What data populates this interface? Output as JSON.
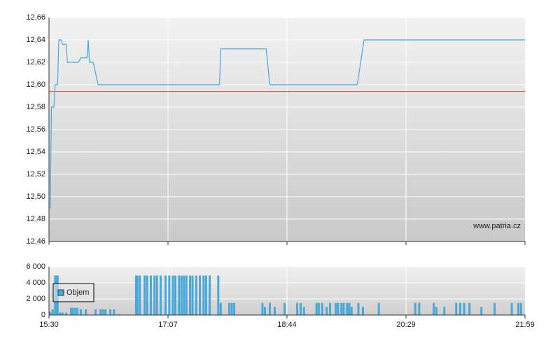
{
  "chart_data": [
    {
      "type": "line",
      "color": "#4aa8d8",
      "x": [
        "15:30",
        "15:31",
        "15:32",
        "15:34",
        "15:35",
        "15:37",
        "15:38",
        "15:40",
        "15:41",
        "15:44",
        "15:45",
        "15:54",
        "15:56",
        "16:01",
        "16:02",
        "16:03",
        "16:06",
        "16:10",
        "17:49",
        "17:50",
        "18:27",
        "18:30",
        "19:46",
        "19:52",
        "21:59"
      ],
      "values": [
        12.49,
        12.49,
        12.58,
        12.58,
        12.6,
        12.6,
        12.64,
        12.64,
        12.636,
        12.636,
        12.62,
        12.62,
        12.624,
        12.624,
        12.64,
        12.62,
        12.62,
        12.6,
        12.6,
        12.632,
        12.632,
        12.6,
        12.6,
        12.64,
        12.64
      ],
      "reference": {
        "value": 12.594,
        "color": "#d9413a"
      },
      "watermark": "www.patria.cz",
      "ylim": [
        12.46,
        12.66
      ],
      "yticks": [
        {
          "value": 12.46,
          "label": "12,46"
        },
        {
          "value": 12.48,
          "label": "12,48"
        },
        {
          "value": 12.5,
          "label": "12,50"
        },
        {
          "value": 12.52,
          "label": "12,52"
        },
        {
          "value": 12.54,
          "label": "12,54"
        },
        {
          "value": 12.56,
          "label": "12,56"
        },
        {
          "value": 12.58,
          "label": "12,58"
        },
        {
          "value": 12.6,
          "label": "12,60"
        },
        {
          "value": 12.62,
          "label": "12,62"
        },
        {
          "value": 12.64,
          "label": "12,64"
        },
        {
          "value": 12.66,
          "label": "12,66"
        }
      ],
      "grid": true
    },
    {
      "type": "bar",
      "legend": "upper-left",
      "x": [
        "15:31",
        "15:33",
        "15:35",
        "15:36",
        "15:37",
        "15:39",
        "15:41",
        "15:44",
        "15:48",
        "15:49",
        "15:51",
        "15:53",
        "15:56",
        "16:00",
        "16:08",
        "16:12",
        "16:14",
        "16:16",
        "16:20",
        "16:23",
        "16:27",
        "16:41",
        "16:42",
        "16:44",
        "16:48",
        "16:50",
        "16:53",
        "16:56",
        "16:58",
        "17:01",
        "17:05",
        "17:08",
        "17:11",
        "17:13",
        "17:16",
        "17:18",
        "17:20",
        "17:22",
        "17:25",
        "17:27",
        "17:30",
        "17:33",
        "17:36",
        "17:38",
        "17:41",
        "17:48",
        "17:50",
        "17:57",
        "17:59",
        "18:01",
        "18:24",
        "18:26",
        "18:30",
        "18:34",
        "18:42",
        "18:53",
        "18:56",
        "18:59",
        "19:10",
        "19:12",
        "19:15",
        "19:19",
        "19:22",
        "19:27",
        "19:29",
        "19:32",
        "19:34",
        "19:37",
        "19:39",
        "19:41",
        "19:47",
        "19:51",
        "20:05",
        "20:36",
        "20:39",
        "20:50",
        "20:52",
        "20:58",
        "21:07",
        "21:10",
        "21:13",
        "21:17",
        "21:26",
        "21:36",
        "21:49",
        "21:54",
        "21:56"
      ],
      "series": [
        {
          "name": "Objem",
          "color": "#4aa8d8",
          "values": [
            400,
            700,
            4900,
            4900,
            4900,
            300,
            300,
            300,
            900,
            900,
            900,
            900,
            700,
            700,
            700,
            700,
            700,
            700,
            700,
            700,
            100,
            4900,
            4900,
            4900,
            4900,
            4900,
            4900,
            4900,
            4900,
            4900,
            4900,
            4900,
            4900,
            4900,
            4900,
            4900,
            4900,
            4900,
            4900,
            4900,
            4900,
            4900,
            4900,
            4900,
            4900,
            4900,
            1500,
            1500,
            1500,
            1500,
            1500,
            1000,
            1500,
            1000,
            1500,
            1500,
            1500,
            1000,
            1500,
            1500,
            1500,
            1000,
            1500,
            1500,
            1500,
            1500,
            1500,
            1500,
            1500,
            1000,
            1500,
            1000,
            1500,
            1500,
            1500,
            1500,
            1000,
            1000,
            1500,
            1500,
            1500,
            1500,
            1000,
            1500,
            1500,
            1500,
            1500
          ]
        }
      ],
      "ylim": [
        0,
        6000
      ],
      "yticks": [
        0,
        {
          "value": 2000,
          "label": "2 000"
        },
        {
          "value": 4000,
          "label": "4 000"
        },
        {
          "value": 6000,
          "label": "6 000"
        }
      ],
      "xticks": [
        "15:30",
        "17:07",
        "18:44",
        "20:29",
        "21:59"
      ],
      "grid": true
    }
  ]
}
